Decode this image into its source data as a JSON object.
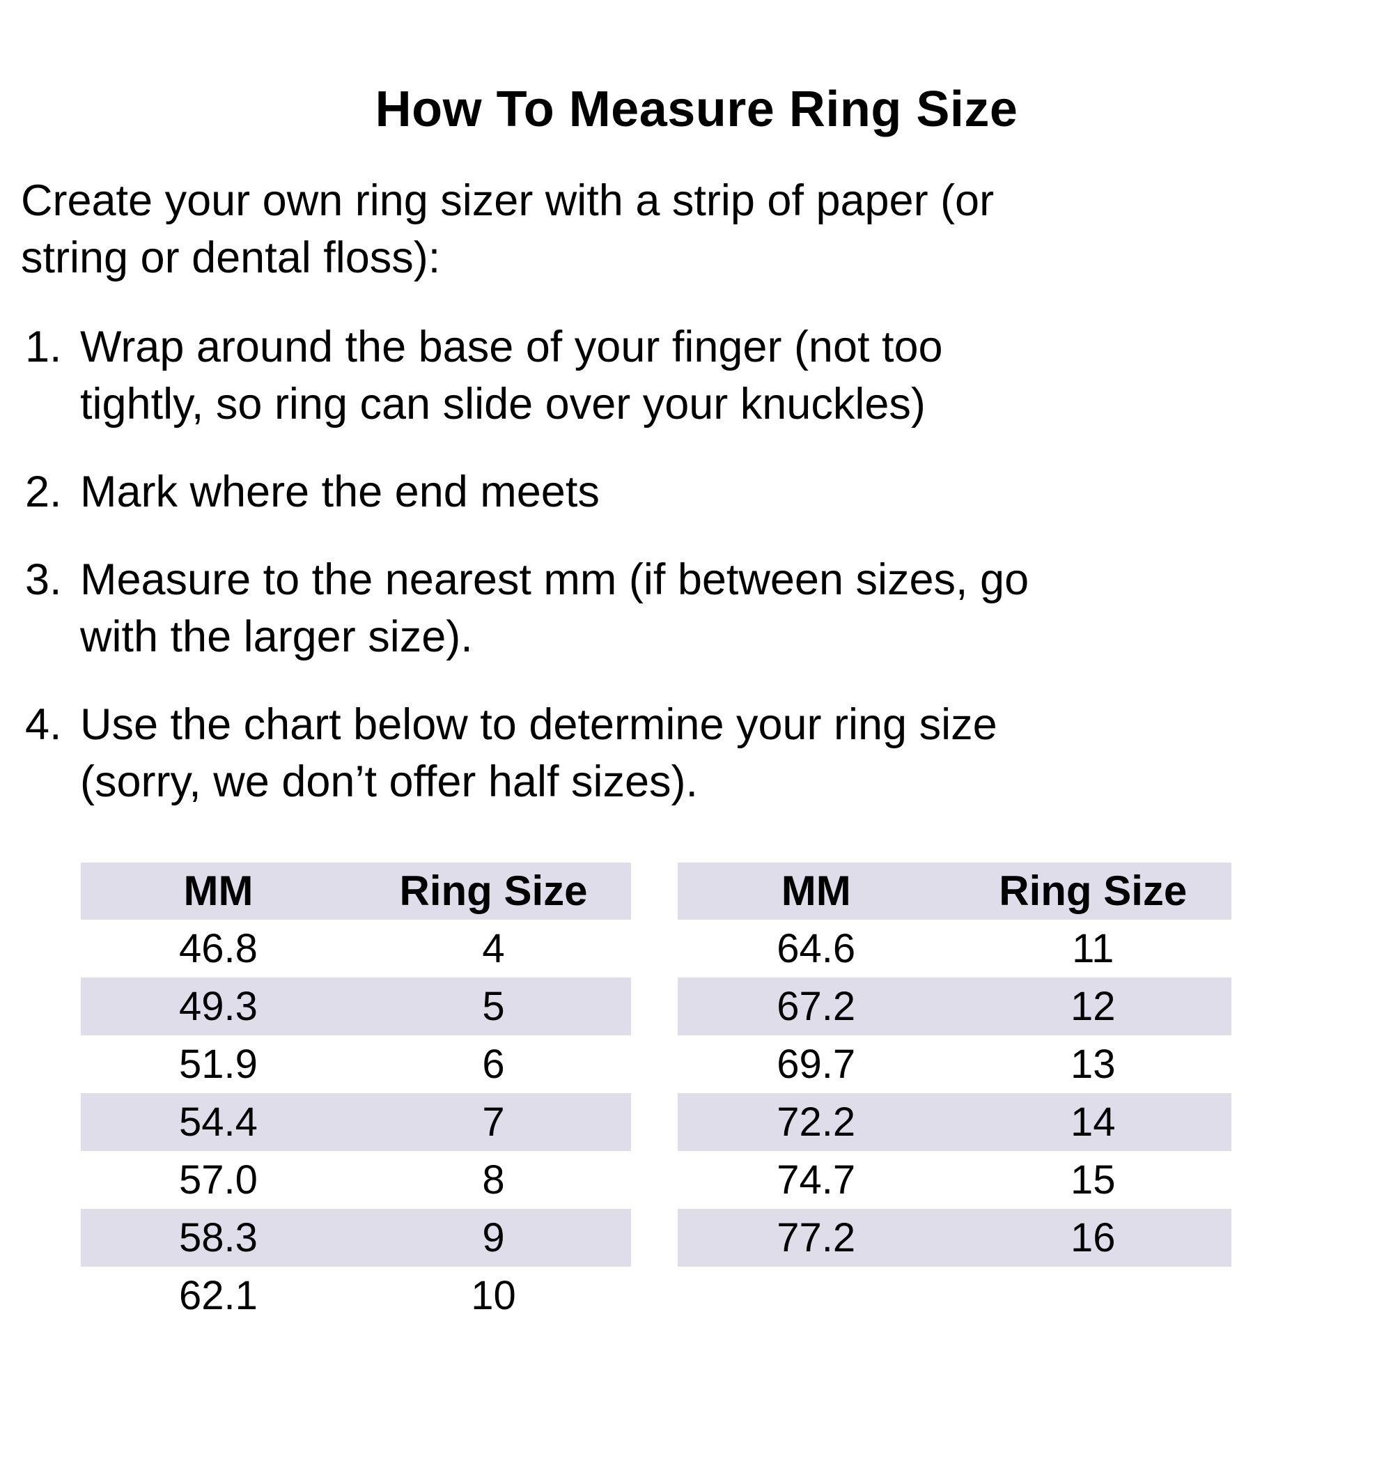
{
  "page": {
    "title": "How To Measure Ring Size",
    "intro": "Create your own ring sizer with a strip of paper (or string or dental floss):",
    "steps": [
      {
        "num": "1.",
        "text": "Wrap around the base of your finger (not too tightly, so ring can slide over your knuckles)"
      },
      {
        "num": "2.",
        "text": "Mark where the end meets"
      },
      {
        "num": "3.",
        "text": "Measure to the nearest mm (if between sizes, go with the larger size)."
      },
      {
        "num": "4.",
        "text": "Use the chart below to determine your ring size (sorry, we don’t offer half sizes)."
      }
    ]
  },
  "tables": {
    "headers": [
      "MM",
      "Ring Size"
    ],
    "left": {
      "rows": [
        [
          "46.8",
          "4"
        ],
        [
          "49.3",
          "5"
        ],
        [
          "51.9",
          "6"
        ],
        [
          "54.4",
          "7"
        ],
        [
          "57.0",
          "8"
        ],
        [
          "58.3",
          "9"
        ],
        [
          "62.1",
          "10"
        ]
      ]
    },
    "right": {
      "rows": [
        [
          "64.6",
          "11"
        ],
        [
          "67.2",
          "12"
        ],
        [
          "69.7",
          "13"
        ],
        [
          "72.2",
          "14"
        ],
        [
          "74.7",
          "15"
        ],
        [
          "77.2",
          "16"
        ]
      ]
    }
  },
  "colors": {
    "stripe": "#E0DDEA",
    "text": "#000000",
    "background": "#FFFFFF"
  }
}
